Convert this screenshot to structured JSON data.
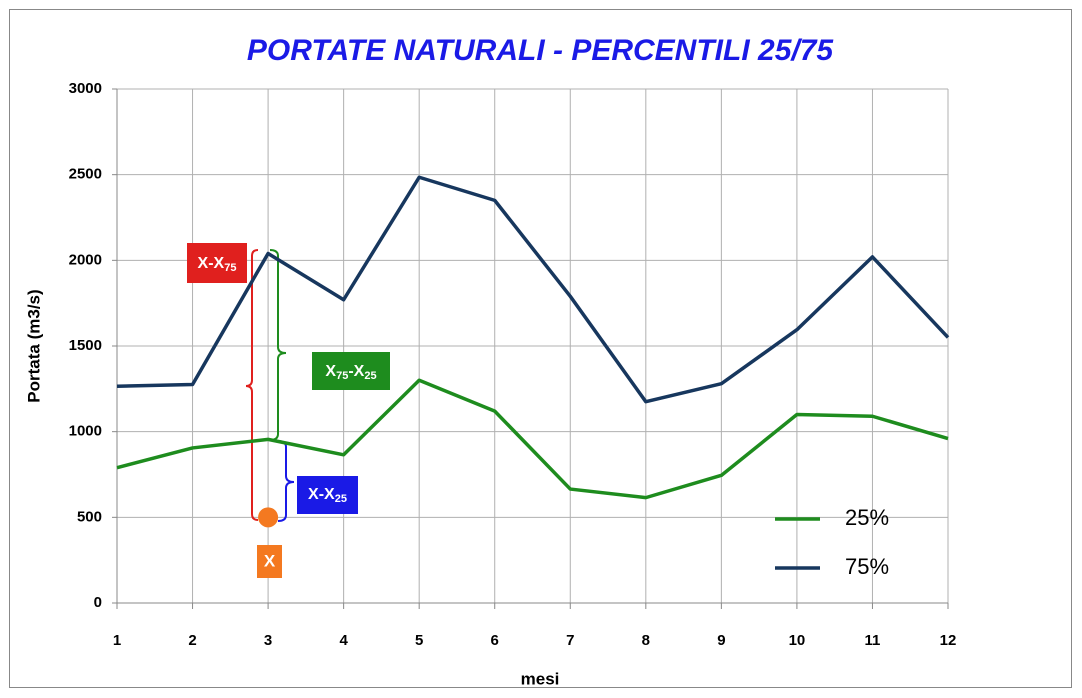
{
  "chart_data": {
    "type": "line",
    "title": "PORTATE NATURALI - PERCENTILI 25/75",
    "xlabel": "mesi",
    "ylabel": "Portata (m3/s)",
    "x": [
      1,
      2,
      3,
      4,
      5,
      6,
      7,
      8,
      9,
      10,
      11,
      12
    ],
    "series": [
      {
        "name": "25%",
        "color": "#1e8c1e",
        "values": [
          790,
          905,
          955,
          865,
          1300,
          1120,
          665,
          615,
          745,
          1100,
          1090,
          960
        ]
      },
      {
        "name": "75%",
        "color": "#17375e",
        "values": [
          1265,
          1275,
          2040,
          1770,
          2485,
          2350,
          1790,
          1175,
          1280,
          1595,
          2020,
          1550
        ]
      }
    ],
    "xlim": [
      1,
      12
    ],
    "xticks": [
      1,
      2,
      3,
      4,
      5,
      6,
      7,
      8,
      9,
      10,
      11,
      12
    ],
    "ylim": [
      0,
      3000
    ],
    "yticks": [
      0,
      500,
      1000,
      1500,
      2000,
      2500,
      3000
    ],
    "grid": true,
    "legend": "lower right",
    "point": {
      "x": 3,
      "y": 500,
      "label": "X",
      "color": "#f47920"
    },
    "annotations": [
      {
        "color": "#e0201e",
        "parts": [
          {
            "text": "X-X"
          },
          {
            "text": "75",
            "sub": true
          }
        ]
      },
      {
        "color": "#1e8c1e",
        "parts": [
          {
            "text": "X"
          },
          {
            "text": "75",
            "sub": true
          },
          {
            "text": "-X"
          },
          {
            "text": "25",
            "sub": true
          }
        ]
      },
      {
        "color": "#1a1ae6",
        "parts": [
          {
            "text": "X-X"
          },
          {
            "text": "25",
            "sub": true
          }
        ]
      }
    ]
  }
}
